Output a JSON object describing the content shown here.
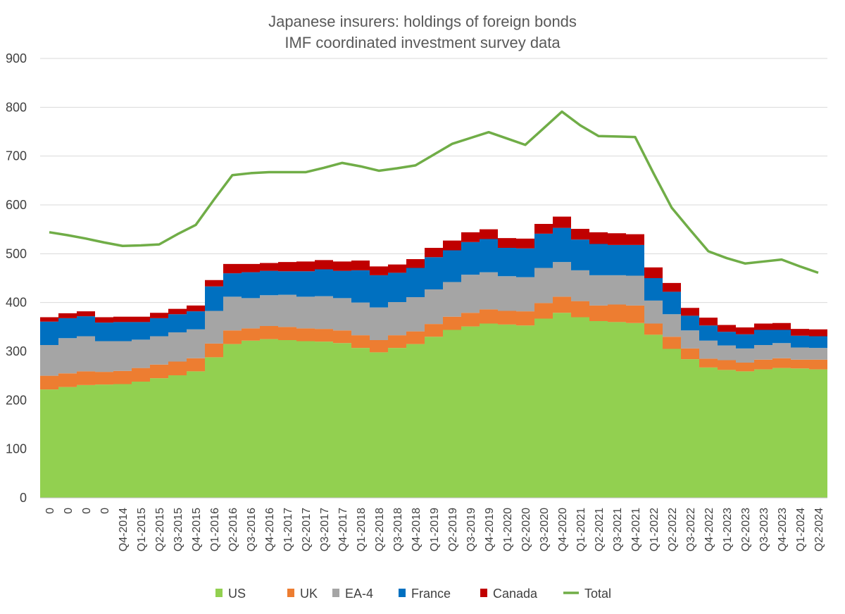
{
  "chart_data": {
    "type": "area",
    "title": "Japanese insurers: holdings of foreign bonds",
    "subtitle": "IMF coordinated investment survey data",
    "xlabel": "",
    "ylabel": "",
    "ylim": [
      0,
      900
    ],
    "yticks": [
      0,
      100,
      200,
      300,
      400,
      500,
      600,
      700,
      800,
      900
    ],
    "grid": true,
    "legend_position": "bottom",
    "stacked_series_style": "step",
    "categories": [
      "0",
      "0",
      "0",
      "0",
      "Q4-2014",
      "Q1-2015",
      "Q2-2015",
      "Q3-2015",
      "Q4-2015",
      "Q1-2016",
      "Q2-2016",
      "Q3-2016",
      "Q4-2016",
      "Q1-2017",
      "Q2-2017",
      "Q3-2017",
      "Q4-2017",
      "Q1-2018",
      "Q2-2018",
      "Q3-2018",
      "Q4-2018",
      "Q1-2019",
      "Q2-2019",
      "Q3-2019",
      "Q4-2019",
      "Q1-2020",
      "Q2-2020",
      "Q3-2020",
      "Q4-2020",
      "Q1-2021",
      "Q2-2021",
      "Q3-2021",
      "Q4-2021",
      "Q1-2022",
      "Q2-2022",
      "Q3-2022",
      "Q4-2022",
      "Q1-2023",
      "Q2-2023",
      "Q3-2023",
      "Q4-2023",
      "Q1-2024",
      "Q2-2024"
    ],
    "series": [
      {
        "name": "US",
        "color": "#92d050",
        "values": [
          222,
          227,
          231,
          232,
          233,
          238,
          245,
          251,
          259,
          288,
          315,
          322,
          325,
          323,
          321,
          320,
          317,
          307,
          298,
          307,
          315,
          330,
          344,
          351,
          357,
          355,
          353,
          367,
          379,
          370,
          362,
          360,
          358,
          334,
          305,
          284,
          267,
          262,
          259,
          263,
          266,
          265,
          263
        ]
      },
      {
        "name": "UK",
        "color": "#ed7d31",
        "values": [
          28,
          28,
          28,
          26,
          27,
          28,
          28,
          28,
          27,
          28,
          28,
          25,
          27,
          27,
          26,
          26,
          26,
          26,
          25,
          26,
          26,
          26,
          27,
          28,
          29,
          28,
          29,
          32,
          33,
          33,
          32,
          36,
          36,
          23,
          25,
          22,
          18,
          20,
          18,
          20,
          20,
          18,
          20
        ]
      },
      {
        "name": "EA-4",
        "color": "#a5a5a5",
        "values": [
          63,
          72,
          72,
          63,
          61,
          58,
          58,
          60,
          59,
          67,
          69,
          62,
          63,
          66,
          65,
          67,
          66,
          67,
          67,
          68,
          70,
          71,
          71,
          78,
          76,
          71,
          70,
          72,
          71,
          63,
          62,
          60,
          61,
          47,
          46,
          37,
          37,
          30,
          29,
          30,
          31,
          25,
          24
        ]
      },
      {
        "name": "France",
        "color": "#0070c0",
        "values": [
          48,
          41,
          41,
          38,
          39,
          36,
          37,
          37,
          37,
          50,
          48,
          53,
          50,
          48,
          52,
          55,
          56,
          66,
          66,
          60,
          60,
          66,
          65,
          67,
          68,
          58,
          59,
          70,
          70,
          63,
          64,
          62,
          63,
          46,
          46,
          30,
          31,
          28,
          29,
          31,
          27,
          24,
          24
        ]
      },
      {
        "name": "Canada",
        "color": "#c00000",
        "values": [
          9,
          10,
          10,
          11,
          11,
          11,
          11,
          11,
          12,
          13,
          19,
          17,
          16,
          19,
          20,
          19,
          19,
          20,
          18,
          17,
          18,
          19,
          20,
          20,
          20,
          20,
          20,
          20,
          23,
          22,
          24,
          24,
          22,
          22,
          18,
          16,
          16,
          14,
          14,
          13,
          14,
          14,
          14
        ]
      },
      {
        "name": "Total",
        "color": "#70ad47",
        "type": "line",
        "values": [
          544,
          538,
          531,
          523,
          516,
          517,
          519,
          540,
          559,
          611,
          661,
          665,
          667,
          667,
          667,
          676,
          686,
          679,
          670,
          675,
          681,
          703,
          725,
          737,
          749,
          736,
          723,
          757,
          791,
          763,
          741,
          740,
          739,
          665,
          594,
          549,
          505,
          491,
          480,
          484,
          488,
          474,
          461
        ]
      }
    ]
  }
}
